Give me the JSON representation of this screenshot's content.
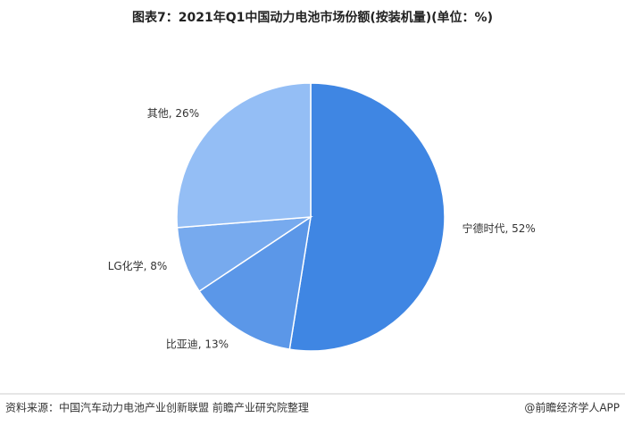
{
  "chart_data": {
    "type": "pie",
    "title": "图表7：2021年Q1中国动力电池市场份额(按装机量)(单位：%)",
    "values": [
      52,
      13,
      8,
      26
    ],
    "value_labels": [
      "宁德时代, 52%",
      "比亚迪, 13%",
      "LG化学, 8%",
      "其他, 26%"
    ],
    "colors": [
      "#3f86e3",
      "#5b97e8",
      "#77aaee",
      "#94bef5"
    ],
    "source": "资料来源：中国汽车动力电池产业创新联盟 前瞻产业研究院整理",
    "credit": "@前瞻经济学人APP"
  }
}
